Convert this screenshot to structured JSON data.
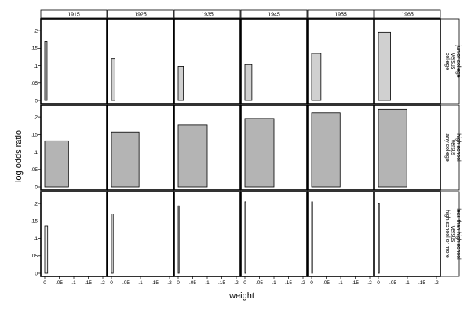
{
  "chart_data": {
    "type": "bar",
    "title": "",
    "xlabel": "weight",
    "ylabel": "log odds ratio",
    "columns": [
      "1915",
      "1925",
      "1935",
      "1945",
      "1955",
      "1965"
    ],
    "rows": [
      {
        "label_lines": [
          "junior college",
          "versus",
          "college"
        ],
        "color": "#d0d0d0",
        "widths": [
          0.008,
          0.012,
          0.018,
          0.024,
          0.032,
          0.042
        ],
        "heights": [
          0.17,
          0.12,
          0.098,
          0.103,
          0.135,
          0.195
        ]
      },
      {
        "label_lines": [
          "high school",
          "versus",
          "any college"
        ],
        "color": "#b4b4b4",
        "widths": [
          0.082,
          0.095,
          0.1,
          0.1,
          0.098,
          0.098
        ],
        "heights": [
          0.132,
          0.157,
          0.178,
          0.196,
          0.212,
          0.222
        ]
      },
      {
        "label_lines": [
          "less than high school",
          "versus",
          "high school or more"
        ],
        "color": "#ececec",
        "widths": [
          0.01,
          0.006,
          0.003,
          0.002,
          0.0015,
          0.001
        ],
        "heights": [
          0.135,
          0.17,
          0.193,
          0.205,
          0.205,
          0.2
        ]
      }
    ],
    "x_ticks": [
      "0",
      ".05",
      ".1",
      ".15",
      ".2"
    ],
    "x_tick_values": [
      0,
      0.05,
      0.1,
      0.15,
      0.2
    ],
    "y_ticks": [
      "0",
      ".05",
      ".1",
      ".15",
      ".2"
    ],
    "y_tick_values": [
      0,
      0.05,
      0.1,
      0.15,
      0.2
    ],
    "xlim": [
      0,
      0.2
    ],
    "ylim": [
      0,
      0.225
    ],
    "grid": false,
    "legend": "none"
  }
}
